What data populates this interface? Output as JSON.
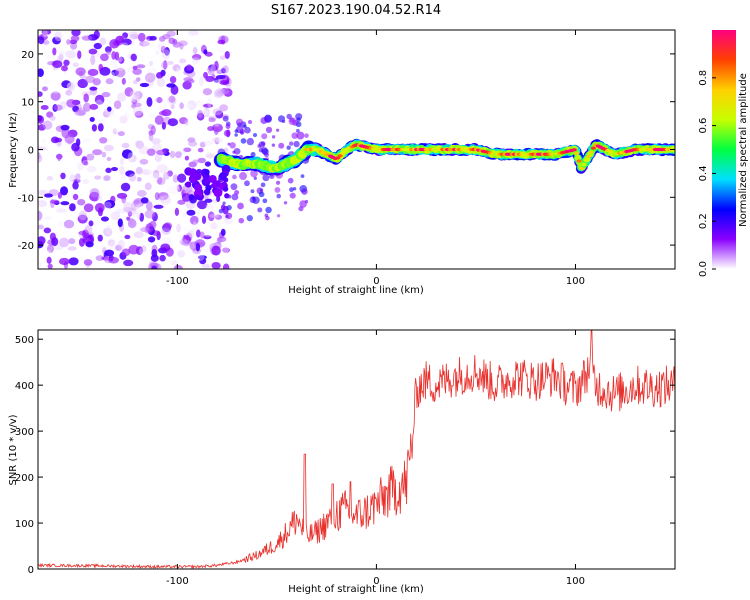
{
  "figure": {
    "title": "S167.2023.190.04.52.R14"
  },
  "chart_data": [
    {
      "type": "heatmap",
      "title": "S167.2023.190.04.52.R14",
      "xlabel": "Height of straight line (km)",
      "ylabel": "Frequency (Hz)",
      "xlim": [
        -170,
        150
      ],
      "ylim": [
        -25,
        25
      ],
      "x_ticks": [
        -100,
        0,
        100
      ],
      "y_ticks": [
        -20,
        -10,
        0,
        10,
        20
      ],
      "grid": false,
      "colorbar": {
        "label": "Normalized spectral amplitude",
        "range": [
          0,
          1
        ],
        "ticks": [
          0.0,
          0.2,
          0.4,
          0.6,
          0.8
        ],
        "colormap": [
          "#ffffff",
          "#8a00ff",
          "#0000ff",
          "#00e0ff",
          "#00ff40",
          "#c8ff00",
          "#ffd000",
          "#ff4000",
          "#ff0080"
        ]
      },
      "signal_band": {
        "description_x": [
          -78,
          -70,
          -60,
          -50,
          -40,
          -35,
          -30,
          -20,
          -15,
          -10,
          0,
          10,
          20,
          30,
          40,
          50,
          60,
          70,
          80,
          90,
          100,
          103,
          110,
          120,
          130,
          150
        ],
        "frequency_hz": [
          -2,
          -3,
          -3,
          -4,
          -2,
          0,
          0,
          -2,
          0,
          1,
          0,
          0,
          0,
          0,
          0,
          0,
          -1,
          -1,
          -1,
          -1,
          0,
          -4,
          1,
          -1,
          0,
          0
        ]
      },
      "noise_region_x": [
        -170,
        -80
      ]
    },
    {
      "type": "line",
      "xlabel": "Height of straight line (km)",
      "ylabel": "SNR (10 * v/v)",
      "xlim": [
        -170,
        150
      ],
      "ylim": [
        0,
        520
      ],
      "x_ticks": [
        -100,
        0,
        100
      ],
      "y_ticks": [
        0,
        100,
        200,
        300,
        400,
        500
      ],
      "grid": false,
      "color": "#e8302c",
      "x": [
        -170,
        -140,
        -110,
        -90,
        -80,
        -70,
        -60,
        -50,
        -45,
        -40,
        -35,
        -30,
        -25,
        -20,
        -15,
        -10,
        -5,
        0,
        5,
        10,
        15,
        18,
        20,
        25,
        30,
        40,
        50,
        60,
        70,
        80,
        90,
        95,
        100,
        105,
        108,
        110,
        120,
        130,
        140,
        150
      ],
      "y": [
        8,
        7,
        5,
        5,
        8,
        15,
        30,
        55,
        80,
        110,
        70,
        80,
        100,
        120,
        130,
        115,
        125,
        140,
        160,
        175,
        185,
        270,
        390,
        410,
        400,
        420,
        430,
        400,
        420,
        410,
        420,
        400,
        390,
        420,
        450,
        400,
        380,
        400,
        395,
        400
      ],
      "spikes": [
        {
          "x": -36,
          "y": 250
        },
        {
          "x": -22,
          "y": 185
        },
        {
          "x": -13,
          "y": 190
        },
        {
          "x": 108,
          "y": 520
        }
      ]
    }
  ]
}
